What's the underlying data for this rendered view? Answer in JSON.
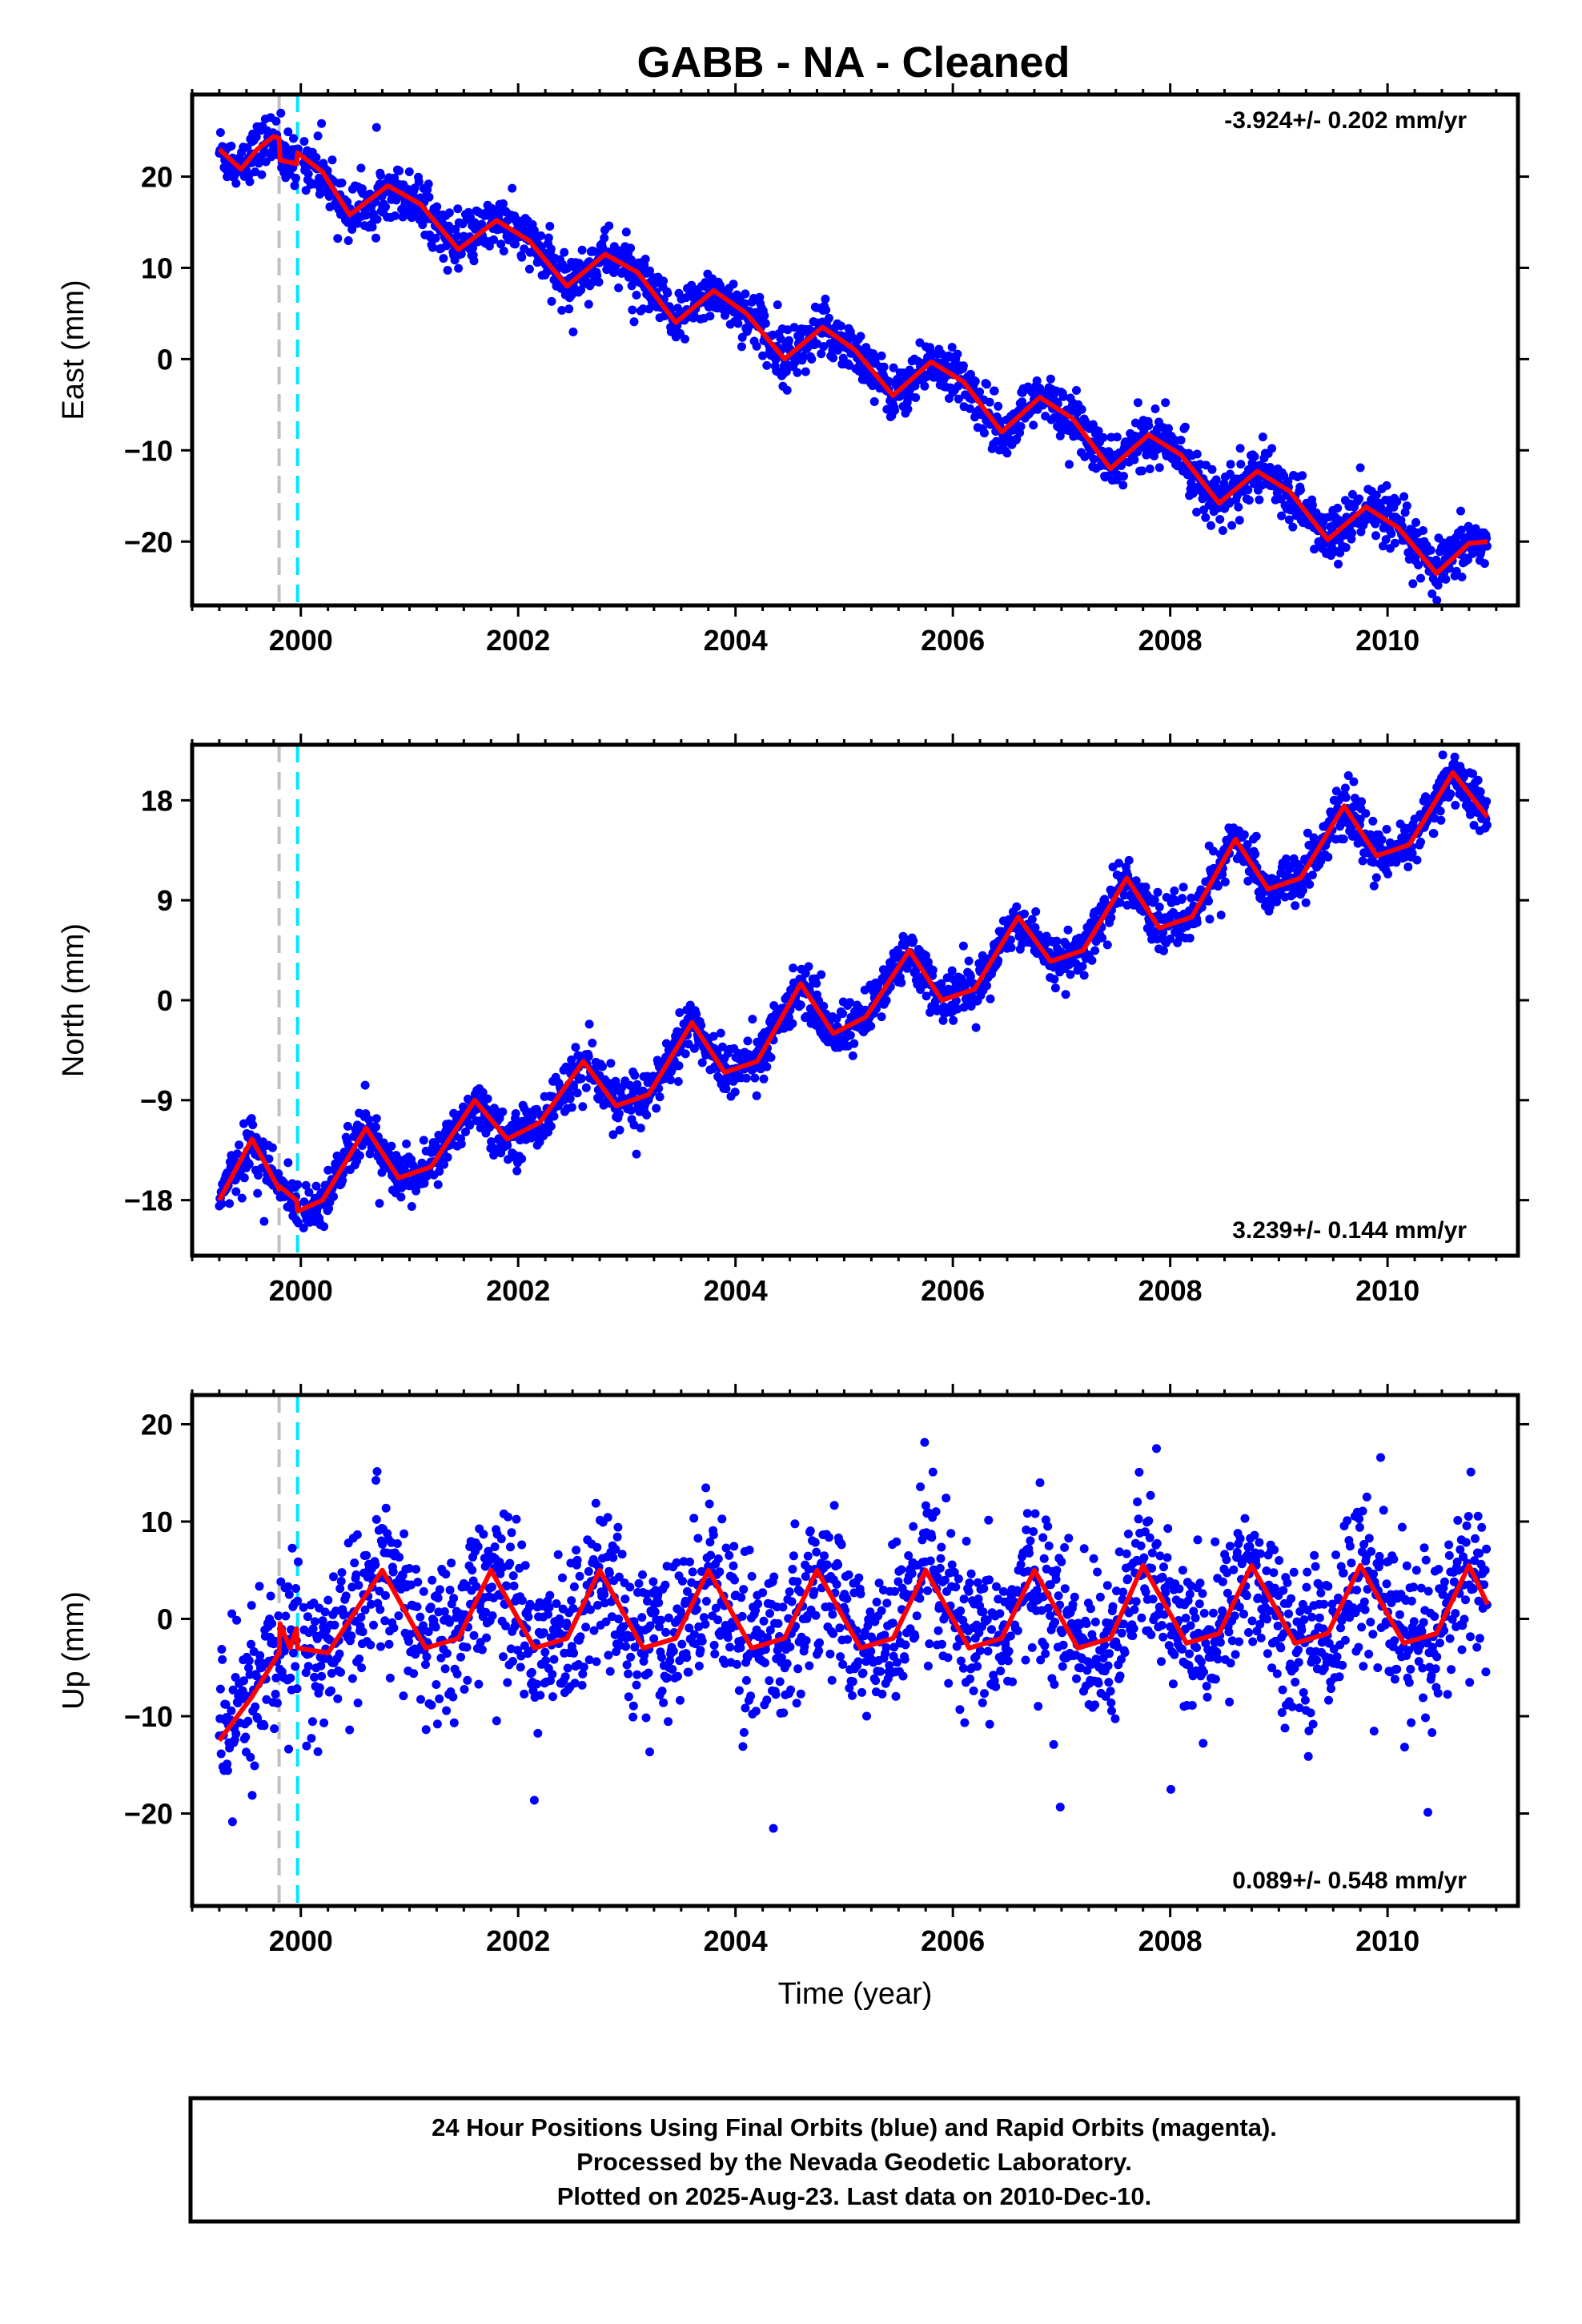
{
  "title": "GABB  - NA - Cleaned",
  "footer": {
    "lines": [
      "24 Hour Positions Using Final Orbits (blue) and Rapid Orbits (magenta).",
      "Processed by the Nevada Geodetic Laboratory.",
      "Plotted on 2025-Aug-23. Last data on 2010-Dec-10."
    ]
  },
  "colors": {
    "points": "#0000ff",
    "model": "#ff0000",
    "event_gray": "#c0c0c0",
    "event_cyan": "#00e5ff",
    "frame": "#000000"
  },
  "chart_data": [
    {
      "type": "scatter",
      "component": "east",
      "ylabel": "East (mm)",
      "xlabel": "",
      "xlim": [
        1999.0,
        2011.2
      ],
      "ylim": [
        -27,
        29
      ],
      "x_ticks": [
        2000,
        2002,
        2004,
        2006,
        2008,
        2010
      ],
      "y_ticks": [
        -20,
        -10,
        0,
        10,
        20
      ],
      "x_tick_labels": [
        "2000",
        "2002",
        "2004",
        "2006",
        "2008",
        "2010"
      ],
      "y_tick_labels": [
        "−20",
        "−10",
        "0",
        "10",
        "20"
      ],
      "rate_text": "-3.924+/- 0.202 mm/yr",
      "rate_position": "top-right",
      "event_lines": [
        1999.8,
        1999.97
      ],
      "series": [
        {
          "kind": "model",
          "color": "#ff0000",
          "x": [
            1999.25,
            1999.45,
            1999.6,
            1999.75,
            1999.8,
            1999.81,
            1999.96,
            1999.97,
            2000.2,
            2000.45,
            2000.8,
            2001.1,
            2001.45,
            2001.8,
            2002.1,
            2002.45,
            2002.8,
            2003.1,
            2003.45,
            2003.8,
            2004.1,
            2004.45,
            2004.8,
            2005.1,
            2005.45,
            2005.8,
            2006.1,
            2006.45,
            2006.8,
            2007.1,
            2007.45,
            2007.8,
            2008.1,
            2008.45,
            2008.8,
            2009.1,
            2009.45,
            2009.8,
            2010.1,
            2010.45,
            2010.75,
            2010.92
          ],
          "y": [
            23.0,
            20.8,
            23.0,
            24.4,
            24.2,
            21.8,
            21.4,
            22.6,
            20.5,
            15.8,
            19.0,
            17.0,
            12.0,
            15.2,
            13.0,
            8.0,
            11.5,
            9.5,
            4.0,
            7.5,
            5.0,
            0.0,
            3.5,
            1.0,
            -4.0,
            -0.3,
            -2.5,
            -8.0,
            -4.2,
            -6.5,
            -12.0,
            -8.3,
            -10.5,
            -15.8,
            -12.3,
            -14.5,
            -19.8,
            -16.2,
            -18.5,
            -23.5,
            -20.2,
            -20.0
          ]
        },
        {
          "kind": "observations",
          "color": "#0000ff",
          "description_free": true,
          "trend_start": [
            1999.25,
            22.0
          ],
          "trend_rate": -3.924,
          "annual_amplitude": 2.8,
          "annual_phase": 2.9,
          "noise": 1.4,
          "sample_step": 0.0055
        }
      ]
    },
    {
      "type": "scatter",
      "component": "north",
      "ylabel": "North (mm)",
      "xlabel": "",
      "xlim": [
        1999.0,
        2011.2
      ],
      "ylim": [
        -23,
        23
      ],
      "x_ticks": [
        2000,
        2002,
        2004,
        2006,
        2008,
        2010
      ],
      "y_ticks": [
        -18,
        -9,
        0,
        9,
        18
      ],
      "x_tick_labels": [
        "2000",
        "2002",
        "2004",
        "2006",
        "2008",
        "2010"
      ],
      "y_tick_labels": [
        "−18",
        "−9",
        "0",
        "9",
        "18"
      ],
      "rate_text": "3.239+/- 0.144 mm/yr",
      "rate_position": "bottom-right",
      "event_lines": [
        1999.8,
        1999.97
      ],
      "series": [
        {
          "kind": "model",
          "color": "#ff0000",
          "x": [
            1999.25,
            1999.55,
            1999.8,
            1999.81,
            1999.96,
            1999.97,
            2000.2,
            2000.6,
            2000.9,
            2001.2,
            2001.6,
            2001.9,
            2002.2,
            2002.6,
            2002.9,
            2003.2,
            2003.6,
            2003.9,
            2004.2,
            2004.6,
            2004.9,
            2005.2,
            2005.6,
            2005.9,
            2006.2,
            2006.6,
            2006.9,
            2007.2,
            2007.6,
            2007.9,
            2008.2,
            2008.6,
            2008.9,
            2009.2,
            2009.6,
            2009.9,
            2010.2,
            2010.6,
            2010.92
          ],
          "y": [
            -18.0,
            -12.5,
            -17.0,
            -16.8,
            -18.0,
            -19.0,
            -18.0,
            -11.5,
            -16.0,
            -15.0,
            -9.0,
            -12.5,
            -11.0,
            -5.5,
            -9.5,
            -8.5,
            -2.0,
            -6.5,
            -5.5,
            1.5,
            -3.0,
            -1.5,
            4.5,
            0.0,
            1.0,
            7.5,
            3.5,
            4.5,
            11.0,
            6.5,
            7.5,
            14.5,
            10.0,
            11.0,
            17.5,
            13.0,
            14.0,
            20.5,
            16.5
          ]
        },
        {
          "kind": "observations",
          "color": "#0000ff",
          "description_free": true,
          "trend_start": [
            1999.25,
            -16.0
          ],
          "trend_rate": 3.239,
          "annual_amplitude": 2.9,
          "annual_phase": 0.6,
          "noise": 1.1,
          "sample_step": 0.0055
        }
      ]
    },
    {
      "type": "scatter",
      "component": "up",
      "ylabel": "Up (mm)",
      "xlabel": "Time (year)",
      "xlim": [
        1999.0,
        2011.2
      ],
      "ylim": [
        -29.5,
        23
      ],
      "x_ticks": [
        2000,
        2002,
        2004,
        2006,
        2008,
        2010
      ],
      "y_ticks": [
        -20,
        -10,
        0,
        10,
        20
      ],
      "x_tick_labels": [
        "2000",
        "2002",
        "2004",
        "2006",
        "2008",
        "2010"
      ],
      "y_tick_labels": [
        "−20",
        "−10",
        "0",
        "10",
        "20"
      ],
      "rate_text": "0.089+/- 0.548 mm/yr",
      "rate_position": "bottom-right",
      "event_lines": [
        1999.8,
        1999.97
      ],
      "series": [
        {
          "kind": "model",
          "color": "#ff0000",
          "x": [
            1999.25,
            1999.55,
            1999.8,
            1999.81,
            1999.9,
            1999.96,
            1999.97,
            2000.25,
            2000.75,
            2001.15,
            2001.45,
            2001.75,
            2002.15,
            2002.45,
            2002.75,
            2003.15,
            2003.45,
            2003.75,
            2004.15,
            2004.45,
            2004.75,
            2005.15,
            2005.45,
            2005.75,
            2006.15,
            2006.45,
            2006.75,
            2007.15,
            2007.45,
            2007.75,
            2008.15,
            2008.45,
            2008.75,
            2009.15,
            2009.45,
            2009.75,
            2010.15,
            2010.45,
            2010.75,
            2010.92
          ],
          "y": [
            -12.5,
            -8.0,
            -3.5,
            -0.5,
            -3.0,
            -1.0,
            -3.0,
            -3.5,
            5.0,
            -3.0,
            -2.0,
            5.0,
            -3.0,
            -2.0,
            5.0,
            -3.0,
            -2.0,
            5.0,
            -3.0,
            -2.0,
            5.0,
            -3.0,
            -2.0,
            5.0,
            -3.0,
            -2.0,
            5.0,
            -3.0,
            -2.0,
            5.5,
            -2.5,
            -1.5,
            5.5,
            -2.5,
            -1.5,
            5.5,
            -2.5,
            -1.5,
            5.5,
            1.5
          ]
        },
        {
          "kind": "observations",
          "color": "#0000ff",
          "description_free": true,
          "trend_start": [
            1999.25,
            0.0
          ],
          "trend_rate": 0.089,
          "annual_amplitude": 3.5,
          "annual_phase": 1.2,
          "noise": 4.0,
          "sample_step": 0.0055
        }
      ]
    }
  ]
}
